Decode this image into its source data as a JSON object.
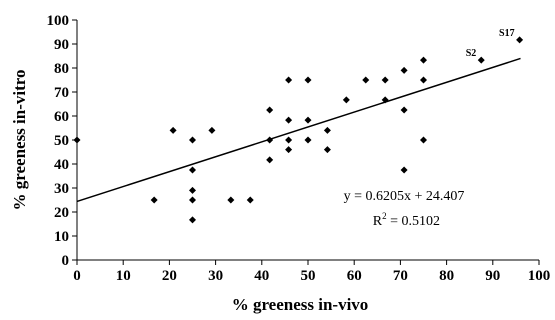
{
  "chart_data": {
    "type": "scatter",
    "title": "",
    "xlabel": "% greeness in-vivo",
    "ylabel": "% greeness in-vitro",
    "xlim": [
      0,
      100
    ],
    "ylim": [
      0,
      100
    ],
    "xticks": [
      0,
      10,
      20,
      30,
      40,
      50,
      60,
      70,
      80,
      90,
      100
    ],
    "yticks": [
      0,
      10,
      20,
      30,
      40,
      50,
      60,
      70,
      80,
      90,
      100
    ],
    "grid": false,
    "marker_color": "#000000",
    "points": [
      {
        "x": 0,
        "y": 50
      },
      {
        "x": 16.7,
        "y": 25
      },
      {
        "x": 20.8,
        "y": 54
      },
      {
        "x": 25,
        "y": 50
      },
      {
        "x": 25,
        "y": 37.5
      },
      {
        "x": 25,
        "y": 29
      },
      {
        "x": 25,
        "y": 25
      },
      {
        "x": 25,
        "y": 16.7
      },
      {
        "x": 29.2,
        "y": 54
      },
      {
        "x": 33.3,
        "y": 25
      },
      {
        "x": 37.5,
        "y": 25
      },
      {
        "x": 41.7,
        "y": 62.5
      },
      {
        "x": 41.7,
        "y": 50
      },
      {
        "x": 41.7,
        "y": 41.7
      },
      {
        "x": 45.8,
        "y": 75
      },
      {
        "x": 45.8,
        "y": 58.3
      },
      {
        "x": 45.8,
        "y": 50
      },
      {
        "x": 45.8,
        "y": 46
      },
      {
        "x": 50,
        "y": 75
      },
      {
        "x": 50,
        "y": 58.3
      },
      {
        "x": 50,
        "y": 50
      },
      {
        "x": 54.2,
        "y": 54
      },
      {
        "x": 54.2,
        "y": 46
      },
      {
        "x": 58.3,
        "y": 66.7
      },
      {
        "x": 62.5,
        "y": 75
      },
      {
        "x": 66.7,
        "y": 75
      },
      {
        "x": 66.7,
        "y": 66.7
      },
      {
        "x": 70.8,
        "y": 79
      },
      {
        "x": 70.8,
        "y": 62.5
      },
      {
        "x": 70.8,
        "y": 37.5
      },
      {
        "x": 75,
        "y": 83.3
      },
      {
        "x": 75,
        "y": 75
      },
      {
        "x": 75,
        "y": 50
      },
      {
        "x": 87.5,
        "y": 83.3,
        "label": "S2"
      },
      {
        "x": 95.8,
        "y": 91.7,
        "label": "S17"
      }
    ],
    "trendline": {
      "type": "linear",
      "slope": 0.6205,
      "intercept": 24.407,
      "x_range": [
        0,
        96
      ],
      "equation": "y = 0.6205x + 24.407",
      "r2_label": "R",
      "r2_exponent": "2",
      "r2_value": " = 0.5102"
    }
  }
}
